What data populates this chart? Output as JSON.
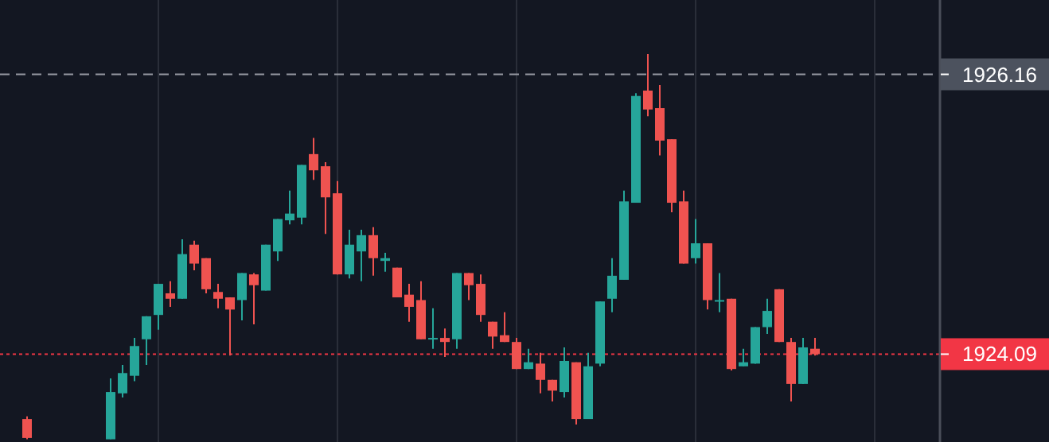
{
  "chart_data": {
    "type": "candlestick",
    "categories": [
      null,
      null,
      null,
      null,
      null,
      null,
      null,
      null,
      null,
      null,
      null,
      null,
      null,
      null,
      null,
      null,
      null,
      null,
      null,
      null,
      null,
      null,
      null,
      null,
      null,
      null,
      null,
      null,
      null,
      null,
      null,
      null,
      null,
      null,
      null,
      null,
      null,
      null,
      null,
      null,
      null,
      null,
      null,
      null,
      null,
      null,
      null,
      null,
      null,
      null,
      null,
      null,
      null,
      null,
      null,
      null,
      null,
      null,
      null,
      null,
      null,
      null,
      null,
      null,
      null,
      null,
      null,
      null,
      null,
      null,
      null,
      null,
      null,
      null,
      null,
      null,
      null,
      null,
      null
    ],
    "ohlc": [
      null,
      null,
      [
        1923.61,
        1923.63,
        1923.46,
        1923.47
      ],
      null,
      null,
      null,
      null,
      null,
      null,
      [
        1923.46,
        1923.91,
        1923.46,
        1923.81
      ],
      [
        1923.8,
        1924.01,
        1923.77,
        1923.95
      ],
      [
        1923.93,
        1924.21,
        1923.89,
        1924.15
      ],
      [
        1924.2,
        1924.37,
        1924.01,
        1924.37
      ],
      [
        1924.38,
        1924.61,
        1924.27,
        1924.61
      ],
      [
        1924.54,
        1924.63,
        1924.44,
        1924.5
      ],
      [
        1924.5,
        1924.94,
        1924.5,
        1924.83
      ],
      [
        1924.9,
        1924.93,
        1924.71,
        1924.76
      ],
      [
        1924.8,
        1924.8,
        1924.54,
        1924.57
      ],
      [
        1924.55,
        1924.61,
        1924.43,
        1924.5
      ],
      [
        1924.51,
        1924.51,
        1924.08,
        1924.42
      ],
      [
        1924.49,
        1924.69,
        1924.34,
        1924.69
      ],
      [
        1924.68,
        1924.69,
        1924.31,
        1924.6
      ],
      [
        1924.56,
        1924.9,
        1924.56,
        1924.9
      ],
      [
        1924.85,
        1925.09,
        1924.78,
        1925.09
      ],
      [
        1925.08,
        1925.3,
        1925.05,
        1925.13
      ],
      [
        1925.1,
        1925.49,
        1925.05,
        1925.49
      ],
      [
        1925.57,
        1925.69,
        1925.38,
        1925.45
      ],
      [
        1925.48,
        1925.51,
        1924.98,
        1925.25
      ],
      [
        1925.28,
        1925.37,
        1924.68,
        1924.68
      ],
      [
        1924.68,
        1925.01,
        1924.65,
        1924.9
      ],
      [
        1924.85,
        1925.01,
        1924.63,
        1924.97
      ],
      [
        1924.97,
        1925.03,
        1924.67,
        1924.8
      ],
      [
        1924.78,
        1924.84,
        1924.7,
        1924.8
      ],
      [
        1924.73,
        1924.73,
        1924.51,
        1924.51
      ],
      [
        1924.53,
        1924.61,
        1924.33,
        1924.44
      ],
      [
        1924.49,
        1924.63,
        1924.2,
        1924.2
      ],
      [
        1924.2,
        1924.43,
        1924.13,
        1924.21
      ],
      [
        1924.21,
        1924.28,
        1924.07,
        1924.18
      ],
      [
        1924.2,
        1924.69,
        1924.13,
        1924.69
      ],
      [
        1924.69,
        1924.69,
        1924.49,
        1924.6
      ],
      [
        1924.61,
        1924.68,
        1924.33,
        1924.38
      ],
      [
        1924.33,
        1924.33,
        1924.13,
        1924.22
      ],
      [
        1924.23,
        1924.4,
        1924.18,
        1924.18
      ],
      [
        1924.18,
        1924.21,
        1923.98,
        1923.98
      ],
      [
        1923.98,
        1924.13,
        1923.98,
        1924.03
      ],
      [
        1924.02,
        1924.1,
        1923.8,
        1923.9
      ],
      [
        1923.9,
        1923.9,
        1923.74,
        1923.82
      ],
      [
        1923.81,
        1924.14,
        1923.77,
        1924.04
      ],
      [
        1924.03,
        1924.03,
        1923.57,
        1923.61
      ],
      [
        1923.61,
        1924.1,
        1923.61,
        1924.0
      ],
      [
        1924.02,
        1924.48,
        1924.0,
        1924.48
      ],
      [
        1924.5,
        1924.8,
        1924.4,
        1924.67
      ],
      [
        1924.64,
        1925.3,
        1924.64,
        1925.22
      ],
      [
        1925.21,
        1926.02,
        1925.21,
        1926.0
      ],
      [
        1926.04,
        1926.31,
        1925.85,
        1925.9
      ],
      [
        1925.91,
        1926.08,
        1925.56,
        1925.67
      ],
      [
        1925.68,
        1925.68,
        1925.14,
        1925.21
      ],
      [
        1925.22,
        1925.3,
        1924.76,
        1924.76
      ],
      [
        1924.8,
        1925.09,
        1924.76,
        1924.91
      ],
      [
        1924.91,
        1924.91,
        1924.42,
        1924.49
      ],
      [
        1924.48,
        1924.69,
        1924.4,
        1924.49
      ],
      [
        1924.5,
        1924.5,
        1923.97,
        1923.98
      ],
      [
        1924.0,
        1924.13,
        1924.0,
        1924.03
      ],
      [
        1924.02,
        1924.29,
        1924.02,
        1924.29
      ],
      [
        1924.29,
        1924.5,
        1924.24,
        1924.41
      ],
      [
        1924.57,
        1924.57,
        1924.18,
        1924.18
      ],
      [
        1924.18,
        1924.21,
        1923.74,
        1923.87
      ],
      [
        1923.87,
        1924.21,
        1923.87,
        1924.14
      ],
      [
        1924.13,
        1924.21,
        1924.08,
        1924.09
      ],
      null,
      null,
      null,
      null,
      null,
      null,
      null,
      null,
      null,
      null
    ],
    "ylim": [
      1923.44,
      1926.71
    ],
    "tick_labels": false,
    "grid": "x",
    "ref_lines": [
      {
        "axis": "y",
        "value": 1926.16,
        "label": "1926.16",
        "color": "#9598a1",
        "line_style": "dashed"
      },
      {
        "axis": "y",
        "value": 1924.09,
        "label": "1924.09",
        "color": "#f23645",
        "line_style": "dotted"
      }
    ]
  }
}
